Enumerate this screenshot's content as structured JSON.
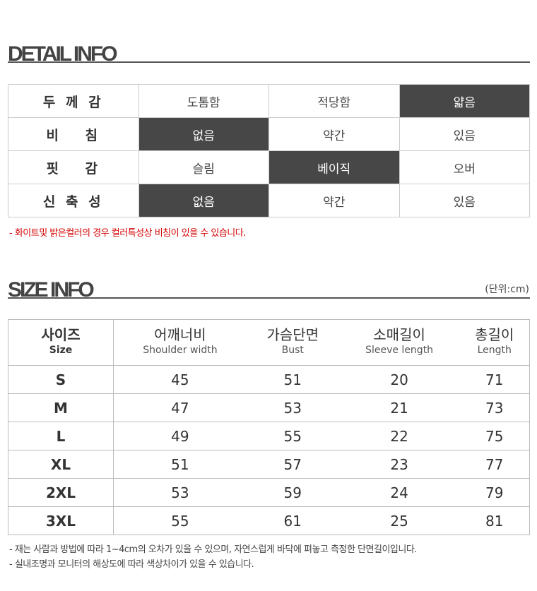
{
  "detail": {
    "title": "DETAIL INFO",
    "rows": [
      {
        "label": "두 께 감",
        "options": [
          "도톰함",
          "적당함",
          "얇음"
        ],
        "selected": 2
      },
      {
        "label": "비　 침",
        "options": [
          "없음",
          "약간",
          "있음"
        ],
        "selected": 0
      },
      {
        "label": "핏　 감",
        "options": [
          "슬림",
          "베이직",
          "오버"
        ],
        "selected": 1
      },
      {
        "label": "신 축 성",
        "options": [
          "없음",
          "약간",
          "있음"
        ],
        "selected": 0
      }
    ],
    "note": "- 화이트및 밝은컬러의 경우 컬러특성상 비침이 있을 수 있습니다.",
    "note_color": "#d40000",
    "highlight_color": "#474747"
  },
  "size": {
    "title": "SIZE INFO",
    "unit": "(단위:cm)",
    "headers": [
      {
        "ko": "사이즈",
        "en": "Size"
      },
      {
        "ko": "어깨너비",
        "en": "Shoulder width"
      },
      {
        "ko": "가슴단면",
        "en": "Bust"
      },
      {
        "ko": "소매길이",
        "en": "Sleeve length"
      },
      {
        "ko": "총길이",
        "en": "Length"
      }
    ],
    "rows": [
      [
        "S",
        "45",
        "51",
        "20",
        "71"
      ],
      [
        "M",
        "47",
        "53",
        "21",
        "73"
      ],
      [
        "L",
        "49",
        "55",
        "22",
        "75"
      ],
      [
        "XL",
        "51",
        "57",
        "23",
        "77"
      ],
      [
        "2XL",
        "53",
        "59",
        "24",
        "79"
      ],
      [
        "3XL",
        "55",
        "61",
        "25",
        "81"
      ]
    ],
    "notes": [
      "- 재는 사람과 방법에 따라 1~4cm의 오차가 있을 수 있으며, 자연스럽게 바닥에 펴놓고 측정한 단면길이입니다.",
      "- 실내조명과 모니터의 해상도에 따라 색상차이가 있을 수 있습니다."
    ]
  }
}
